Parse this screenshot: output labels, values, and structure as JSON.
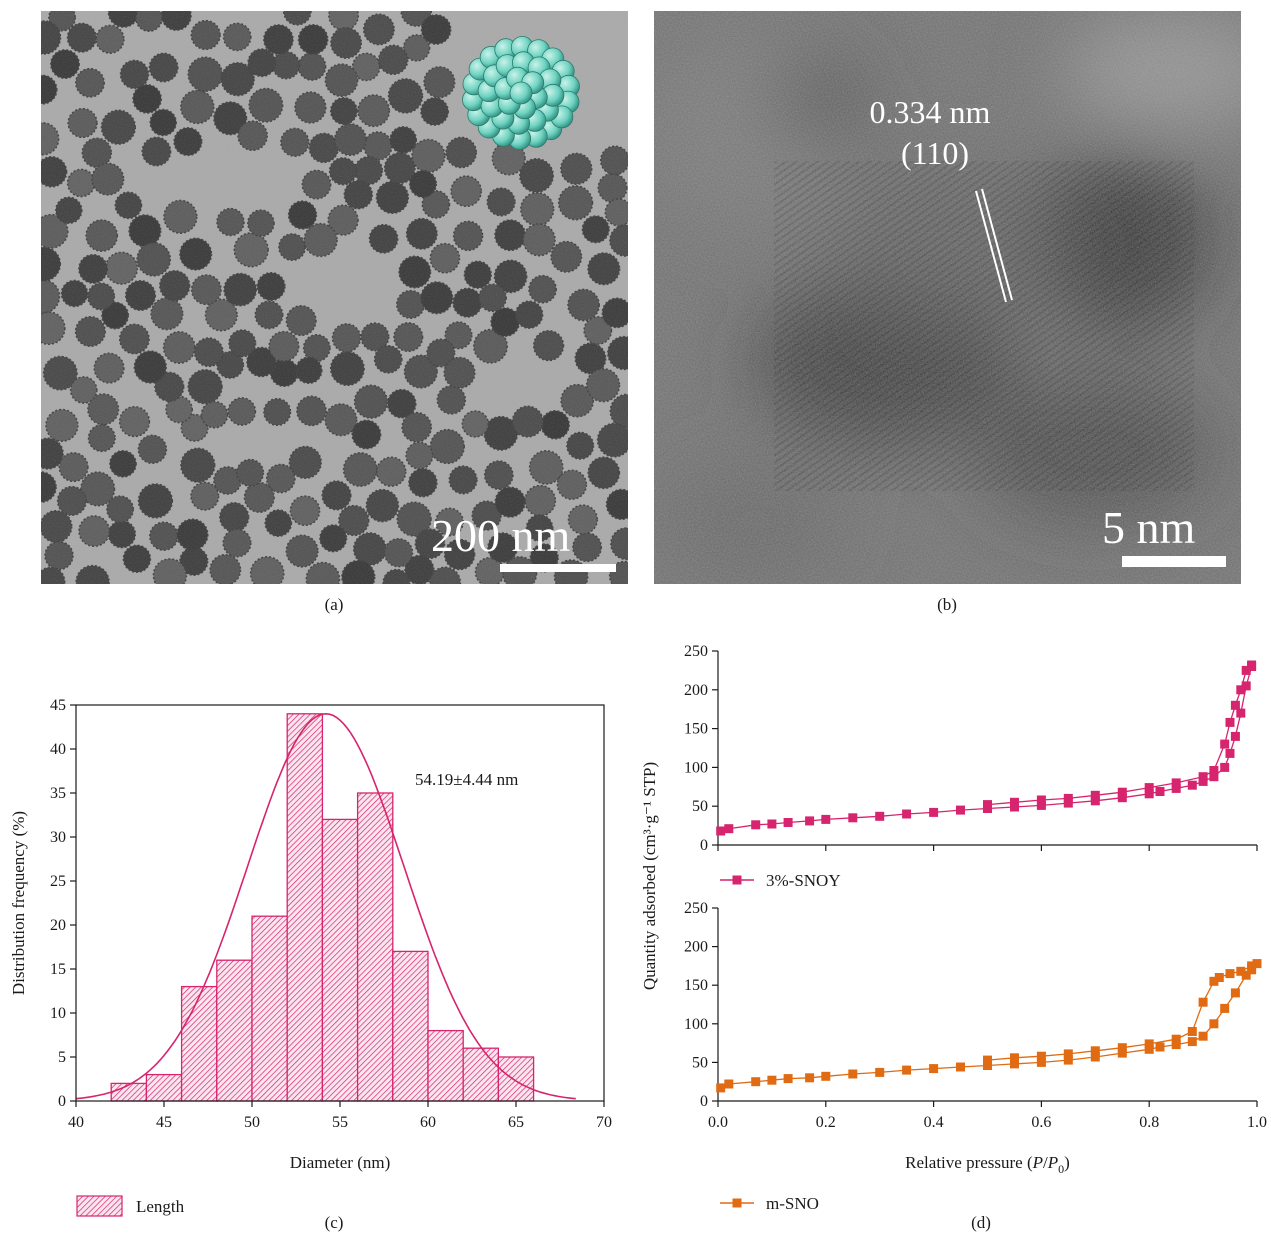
{
  "panels": {
    "a": {
      "caption": "(a)",
      "scale_bar": "200 nm"
    },
    "b": {
      "caption": "(b)",
      "lattice_spacing": "0.334 nm",
      "lattice_plane": "(110)",
      "scale_bar": "5 nm"
    },
    "c": {
      "caption": "(c)"
    },
    "d": {
      "caption": "(d)"
    }
  },
  "colors": {
    "histogram": "#d6246e",
    "snoy": "#d6246e",
    "msno": "#e06b12"
  },
  "chart_data": [
    {
      "type": "bar",
      "title": "",
      "xlabel": "Diameter (nm)",
      "ylabel": "Distribution frequency (%)",
      "xlim": [
        40,
        70
      ],
      "ylim": [
        0,
        45
      ],
      "xticks": [
        40,
        45,
        50,
        55,
        60,
        65,
        70
      ],
      "yticks": [
        0,
        5,
        10,
        15,
        20,
        25,
        30,
        35,
        40,
        45
      ],
      "bin_edges": [
        42,
        44,
        46,
        48,
        50,
        52,
        54,
        56,
        58,
        60,
        62,
        64,
        66
      ],
      "values": [
        2,
        3,
        13,
        16,
        21,
        44,
        32,
        35,
        17,
        8,
        6,
        5
      ],
      "fit": {
        "type": "gaussian",
        "mean": 54.19,
        "sd": 4.44,
        "peak": 44
      },
      "annotation": "54.19±4.44 nm",
      "legend": {
        "label": "Length",
        "position": "bottom-left"
      },
      "grid": false
    },
    {
      "type": "line",
      "xlabel": "Relative pressure (P/P0)",
      "ylabel": "Quantity adsorbed (cm³·g⁻¹ STP)",
      "xlim": [
        0,
        1
      ],
      "xticks": [
        "0.0",
        "0.2",
        "0.4",
        "0.6",
        "0.8",
        "1.0"
      ],
      "ylim": [
        0,
        250
      ],
      "yticks": [
        0,
        50,
        100,
        150,
        200,
        250
      ],
      "grid": false,
      "subplots": [
        {
          "name": "3%-SNOY",
          "adsorption": {
            "x": [
              0.005,
              0.02,
              0.07,
              0.1,
              0.13,
              0.17,
              0.2,
              0.25,
              0.3,
              0.35,
              0.4,
              0.45,
              0.5,
              0.55,
              0.6,
              0.65,
              0.7,
              0.75,
              0.8,
              0.82,
              0.85,
              0.88,
              0.9,
              0.92,
              0.94,
              0.95,
              0.96,
              0.97,
              0.98,
              0.99
            ],
            "y": [
              18,
              21,
              26,
              27,
              29,
              31,
              33,
              35,
              37,
              40,
              42,
              45,
              47,
              49,
              51,
              54,
              57,
              61,
              66,
              69,
              73,
              77,
              82,
              88,
              100,
              118,
              140,
              170,
              205,
              230
            ]
          },
          "desorption": {
            "x": [
              0.99,
              0.98,
              0.97,
              0.96,
              0.95,
              0.94,
              0.92,
              0.9,
              0.85,
              0.8,
              0.75,
              0.7,
              0.65,
              0.6,
              0.55,
              0.5
            ],
            "y": [
              232,
              225,
              200,
              180,
              158,
              130,
              96,
              88,
              80,
              74,
              68,
              64,
              60,
              58,
              55,
              52
            ]
          },
          "legend_position": "bottom-left"
        },
        {
          "name": "m-SNO",
          "adsorption": {
            "x": [
              0.005,
              0.02,
              0.07,
              0.1,
              0.13,
              0.17,
              0.2,
              0.25,
              0.3,
              0.35,
              0.4,
              0.45,
              0.5,
              0.55,
              0.6,
              0.65,
              0.7,
              0.75,
              0.8,
              0.82,
              0.85,
              0.88,
              0.9,
              0.92,
              0.94,
              0.96,
              0.98,
              0.99,
              1.0
            ],
            "y": [
              17,
              22,
              25,
              27,
              29,
              30,
              32,
              35,
              37,
              40,
              42,
              44,
              46,
              48,
              50,
              53,
              57,
              62,
              67,
              70,
              73,
              77,
              84,
              100,
              120,
              140,
              163,
              170,
              178
            ]
          },
          "desorption": {
            "x": [
              0.99,
              0.97,
              0.95,
              0.93,
              0.92,
              0.9,
              0.88,
              0.85,
              0.8,
              0.75,
              0.7,
              0.65,
              0.6,
              0.55,
              0.5
            ],
            "y": [
              175,
              168,
              165,
              160,
              155,
              128,
              90,
              80,
              74,
              69,
              65,
              61,
              58,
              56,
              53
            ]
          },
          "legend_position": "bottom-left"
        }
      ]
    }
  ]
}
